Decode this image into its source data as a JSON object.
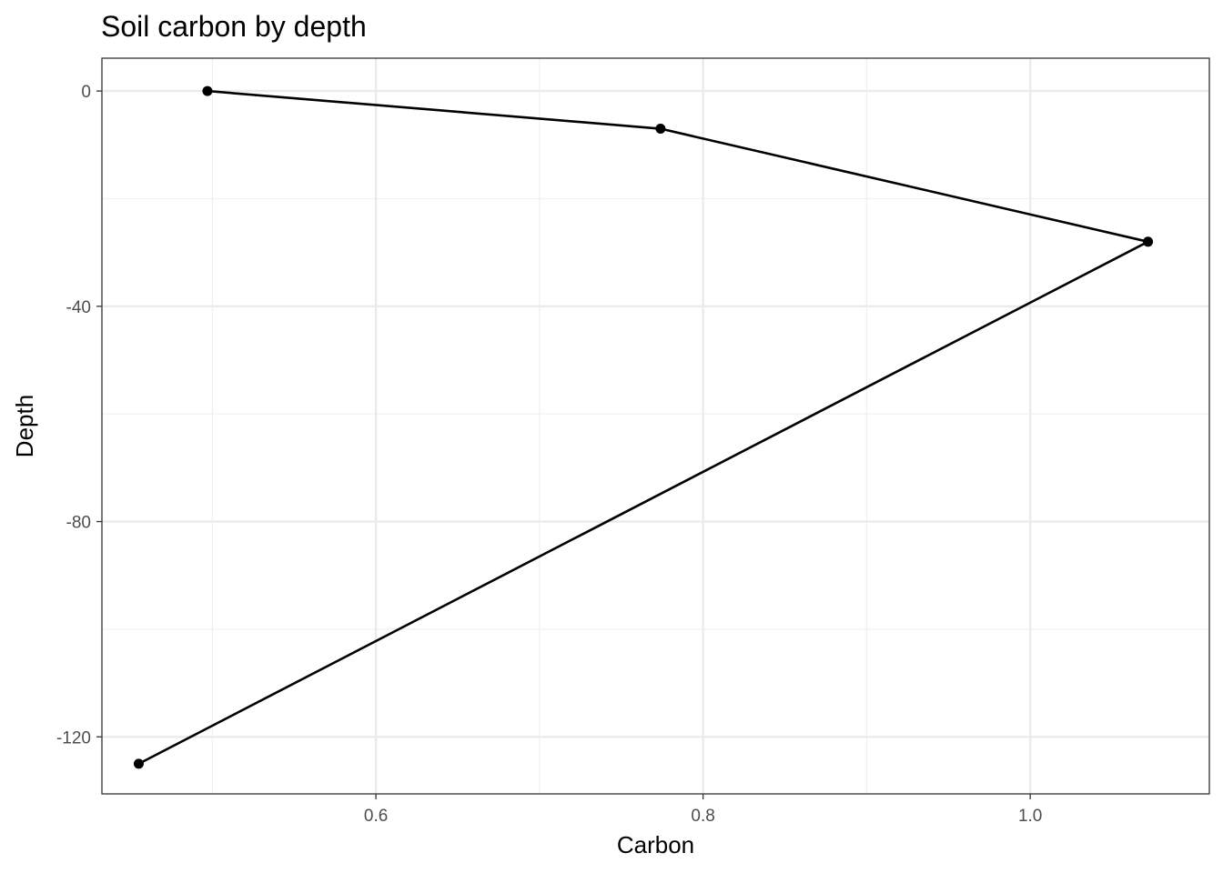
{
  "chart_data": {
    "type": "line",
    "title": "Soil carbon by depth",
    "xlabel": "Carbon",
    "ylabel": "Depth",
    "xlim": [
      0.4325,
      1.1095
    ],
    "ylim": [
      -130.6,
      6.1
    ],
    "x_ticks": [
      0.6,
      0.8,
      1.0
    ],
    "x_tick_labels": [
      "0.6",
      "0.8",
      "1.0"
    ],
    "x_minor_ticks": [
      0.5,
      0.7,
      0.9
    ],
    "y_ticks": [
      0,
      -40,
      -80,
      -120
    ],
    "y_tick_labels": [
      "0",
      "-40",
      "-80",
      "-120"
    ],
    "y_minor_ticks": [
      -20,
      -60,
      -100
    ],
    "grid": true,
    "legend": "none",
    "series": [
      {
        "points": [
          {
            "x": 0.497,
            "y": 0
          },
          {
            "x": 0.774,
            "y": -7
          },
          {
            "x": 1.072,
            "y": -28
          },
          {
            "x": 0.455,
            "y": -125
          }
        ],
        "color": "#000000"
      }
    ]
  }
}
